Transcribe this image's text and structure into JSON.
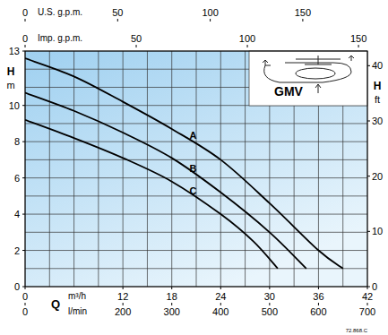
{
  "chart_data": {
    "type": "line",
    "title": "GMV",
    "xlabel": "Q",
    "xunit": "m³/h",
    "ylabel": "H",
    "yunit": "m",
    "y2label": "H",
    "y2unit": "ft",
    "code": "72.868.C",
    "xlim": [
      0,
      42
    ],
    "xticks": [
      0,
      12,
      18,
      24,
      30,
      36,
      42
    ],
    "ylim": [
      0,
      13
    ],
    "yticks": [
      0,
      2,
      4,
      6,
      8,
      10,
      13
    ],
    "y2lim": [
      0,
      42.65
    ],
    "y2ticks": [
      0,
      10,
      20,
      30,
      40
    ],
    "xgrid": [
      0,
      3,
      6,
      9,
      12,
      15,
      18,
      21,
      24,
      27,
      30,
      33,
      36,
      39,
      42
    ],
    "ygrid": [
      0,
      1,
      2,
      3,
      4,
      5,
      6,
      7,
      8,
      9,
      10,
      11,
      12,
      13
    ],
    "grid": true,
    "x_scales": [
      {
        "label": "l/min",
        "position": "bottom",
        "lim": [
          0,
          700
        ],
        "ticks": [
          0,
          200,
          300,
          400,
          500,
          600,
          700
        ]
      },
      {
        "label": "U.S. g.p.m.",
        "position": "top",
        "lim": [
          0,
          184.9
        ],
        "ticks": [
          0,
          50,
          100,
          150
        ]
      },
      {
        "label": "Imp. g.p.m.",
        "position": "top",
        "lim": [
          0,
          154
        ],
        "ticks": [
          0,
          50,
          100,
          150
        ]
      }
    ],
    "series": [
      {
        "name": "A",
        "color": "#000000",
        "x": [
          0,
          6,
          12,
          18,
          24,
          30,
          36,
          39
        ],
        "values": [
          12.6,
          11.6,
          10.2,
          8.7,
          7.0,
          4.6,
          2.0,
          1.0
        ]
      },
      {
        "name": "B",
        "color": "#000000",
        "x": [
          0,
          6,
          12,
          18,
          24,
          30,
          34.5
        ],
        "values": [
          10.7,
          9.7,
          8.5,
          7.1,
          5.2,
          3.0,
          1.0
        ]
      },
      {
        "name": "C",
        "color": "#000000",
        "x": [
          0,
          6,
          12,
          18,
          24,
          28,
          31
        ],
        "values": [
          9.2,
          8.2,
          7.1,
          5.8,
          4.0,
          2.5,
          1.0
        ]
      }
    ]
  }
}
